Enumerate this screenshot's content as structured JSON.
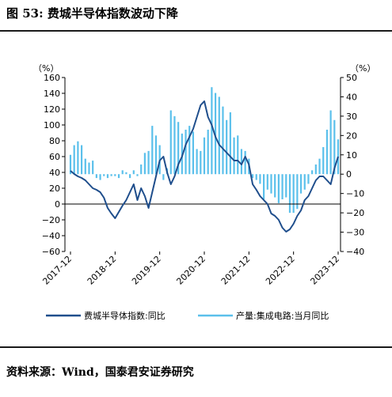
{
  "figure": {
    "title": "图 53: 费城半导体指数波动下降",
    "source": "资料来源：Wind，国泰君安证券研究"
  },
  "chart_data": {
    "type": "line+bar",
    "title": "费城半导体指数波动下降",
    "left_axis": {
      "unit_label": "（%）",
      "min": -60,
      "max": 160,
      "step": 20,
      "ticks": [
        "160",
        "140",
        "120",
        "100",
        "80",
        "60",
        "40",
        "20",
        "0",
        "−20",
        "−40",
        "−60"
      ]
    },
    "right_axis": {
      "unit_label": "（%）",
      "min": -40,
      "max": 50,
      "step": 10,
      "ticks": [
        "50",
        "40",
        "30",
        "20",
        "10",
        "0",
        "−10",
        "−20",
        "−30",
        "−40"
      ]
    },
    "x_ticks": [
      "2017-12",
      "2018-12",
      "2019-12",
      "2020-12",
      "2021-12",
      "2022-12",
      "2023-12"
    ],
    "x_range": [
      "2017-12",
      "2023-12"
    ],
    "grid": false,
    "legend_position": "bottom",
    "series": [
      {
        "name": "费城半导体指数:同比",
        "kind": "line",
        "axis": "left",
        "color": "#1f4e8c",
        "x": [
          "2017-12",
          "2018-01",
          "2018-02",
          "2018-03",
          "2018-04",
          "2018-05",
          "2018-06",
          "2018-07",
          "2018-08",
          "2018-09",
          "2018-10",
          "2018-11",
          "2018-12",
          "2019-01",
          "2019-02",
          "2019-03",
          "2019-04",
          "2019-05",
          "2019-06",
          "2019-07",
          "2019-08",
          "2019-09",
          "2019-10",
          "2019-11",
          "2019-12",
          "2020-01",
          "2020-02",
          "2020-03",
          "2020-04",
          "2020-05",
          "2020-06",
          "2020-07",
          "2020-08",
          "2020-09",
          "2020-10",
          "2020-11",
          "2020-12",
          "2021-01",
          "2021-02",
          "2021-03",
          "2021-04",
          "2021-05",
          "2021-06",
          "2021-07",
          "2021-08",
          "2021-09",
          "2021-10",
          "2021-11",
          "2021-12",
          "2022-01",
          "2022-02",
          "2022-03",
          "2022-04",
          "2022-05",
          "2022-06",
          "2022-07",
          "2022-08",
          "2022-09",
          "2022-10",
          "2022-11",
          "2022-12",
          "2023-01",
          "2023-02",
          "2023-03",
          "2023-04",
          "2023-05",
          "2023-06",
          "2023-07",
          "2023-08",
          "2023-09",
          "2023-10",
          "2023-11",
          "2023-12"
        ],
        "values": [
          42,
          38,
          35,
          33,
          30,
          25,
          20,
          18,
          15,
          8,
          -5,
          -12,
          -18,
          -10,
          -2,
          5,
          15,
          25,
          5,
          20,
          10,
          -5,
          15,
          35,
          55,
          60,
          40,
          25,
          35,
          50,
          60,
          75,
          85,
          95,
          110,
          125,
          130,
          110,
          100,
          85,
          75,
          70,
          65,
          60,
          55,
          55,
          50,
          60,
          50,
          25,
          18,
          10,
          5,
          0,
          -12,
          -15,
          -20,
          -30,
          -35,
          -32,
          -25,
          -15,
          -8,
          5,
          10,
          20,
          30,
          35,
          35,
          30,
          25,
          45,
          60
        ]
      },
      {
        "name": "产量:集成电路:当月同比",
        "kind": "bar",
        "axis": "right",
        "color": "#5bc0eb",
        "x": [
          "2017-12",
          "2018-01",
          "2018-02",
          "2018-03",
          "2018-04",
          "2018-05",
          "2018-06",
          "2018-07",
          "2018-08",
          "2018-09",
          "2018-10",
          "2018-11",
          "2018-12",
          "2019-01",
          "2019-02",
          "2019-03",
          "2019-04",
          "2019-05",
          "2019-06",
          "2019-07",
          "2019-08",
          "2019-09",
          "2019-10",
          "2019-11",
          "2019-12",
          "2020-01",
          "2020-02",
          "2020-03",
          "2020-04",
          "2020-05",
          "2020-06",
          "2020-07",
          "2020-08",
          "2020-09",
          "2020-10",
          "2020-11",
          "2020-12",
          "2021-01",
          "2021-02",
          "2021-03",
          "2021-04",
          "2021-05",
          "2021-06",
          "2021-07",
          "2021-08",
          "2021-09",
          "2021-10",
          "2021-11",
          "2021-12",
          "2022-01",
          "2022-02",
          "2022-03",
          "2022-04",
          "2022-05",
          "2022-06",
          "2022-07",
          "2022-08",
          "2022-09",
          "2022-10",
          "2022-11",
          "2022-12",
          "2023-01",
          "2023-02",
          "2023-03",
          "2023-04",
          "2023-05",
          "2023-06",
          "2023-07",
          "2023-08",
          "2023-09",
          "2023-10",
          "2023-11",
          "2023-12"
        ],
        "values": [
          10,
          15,
          17,
          15,
          8,
          6,
          7,
          -2,
          -3,
          -1,
          -2,
          -1,
          -1,
          -2,
          2,
          1,
          -2,
          2,
          -1,
          5,
          11,
          12,
          25,
          20,
          15,
          -3,
          3,
          33,
          30,
          27,
          21,
          23,
          25,
          22,
          13,
          12,
          19,
          23,
          45,
          42,
          40,
          35,
          28,
          32,
          19,
          20,
          13,
          12,
          8,
          -2,
          -3,
          -5,
          -13,
          -8,
          -10,
          -12,
          -15,
          -13,
          -12,
          -20,
          -20,
          -18,
          -10,
          -8,
          -5,
          2,
          5,
          8,
          14,
          23,
          33,
          28,
          18
        ]
      }
    ]
  }
}
